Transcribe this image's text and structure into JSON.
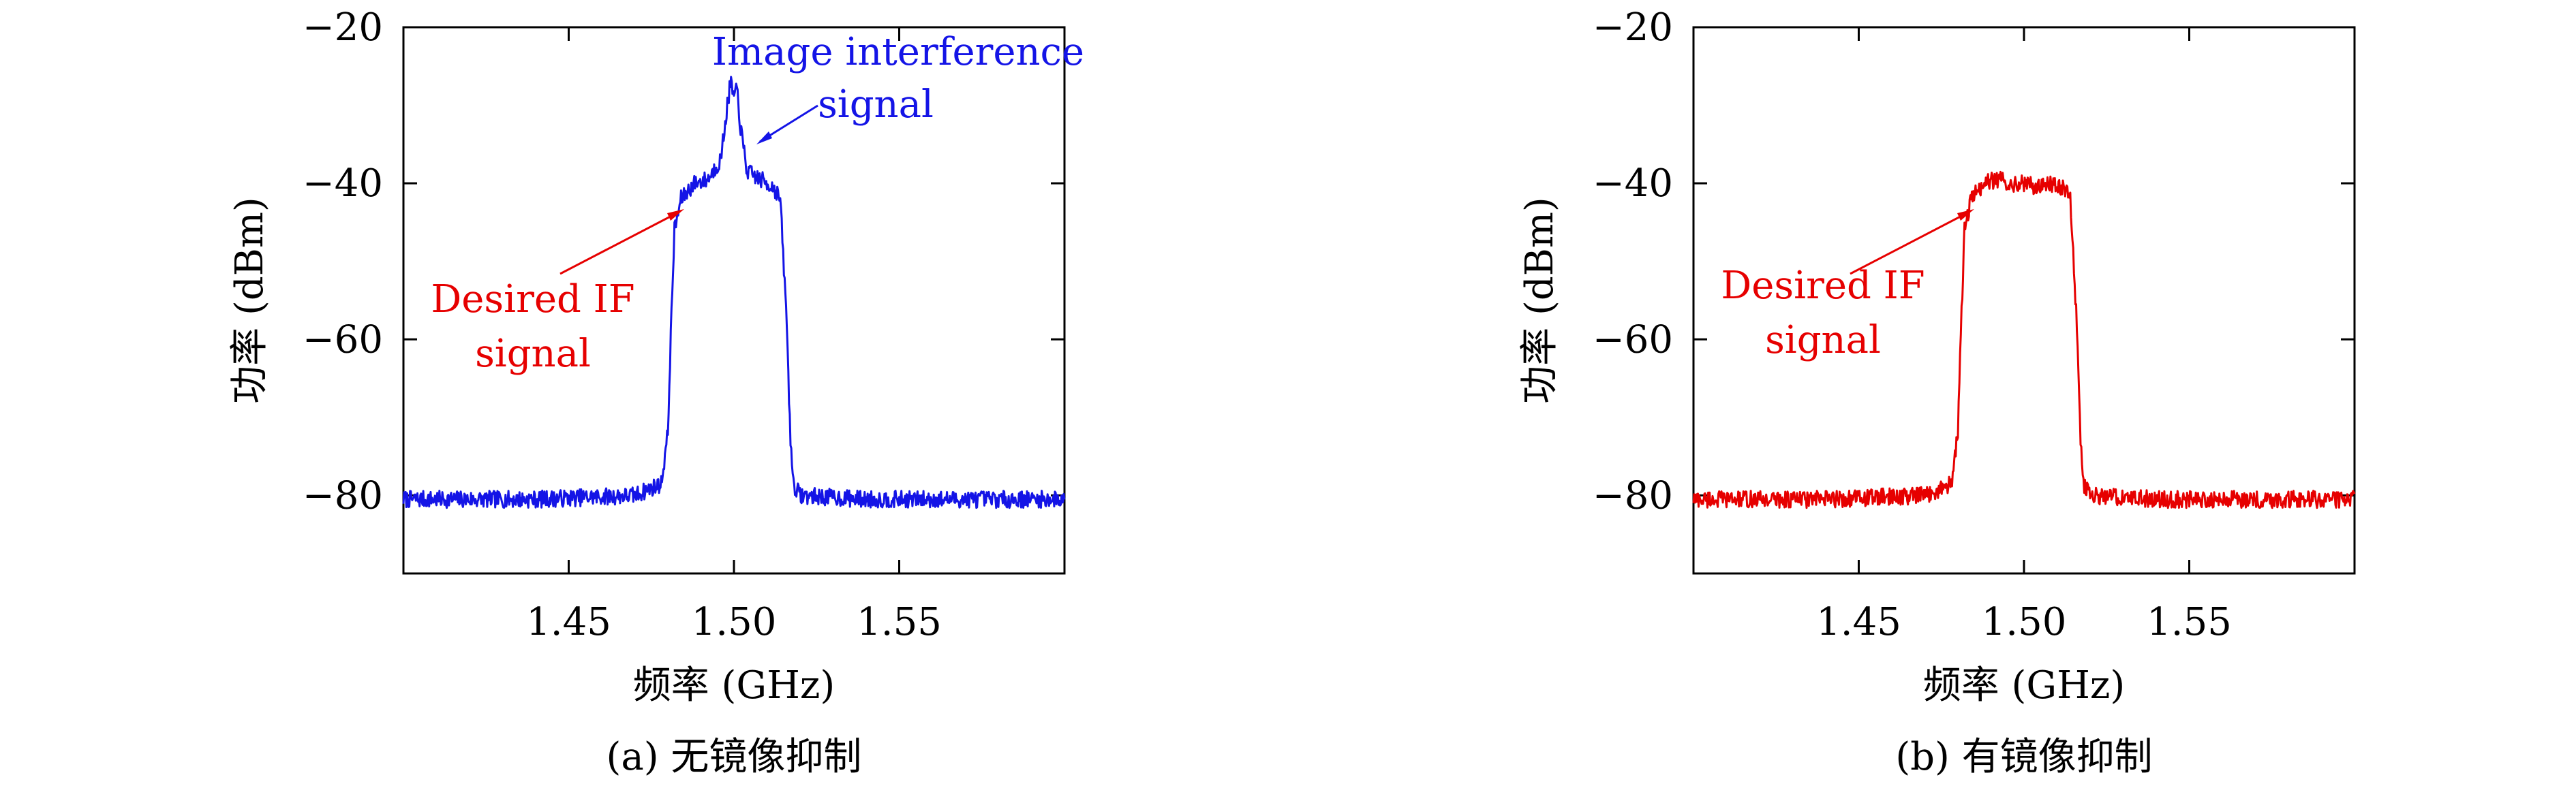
{
  "chart_data": [
    {
      "type": "line",
      "caption": "(a) 无镜像抑制",
      "xlabel": "频率 (GHz)",
      "ylabel": "功率 (dBm)",
      "xlim": [
        1.4,
        1.6
      ],
      "ylim": [
        -90,
        -20
      ],
      "xticks": [
        1.45,
        1.5,
        1.55
      ],
      "xtick_labels": [
        "1.45",
        "1.50",
        "1.55"
      ],
      "yticks": [
        -20,
        -40,
        -60,
        -80
      ],
      "ytick_labels": [
        "−20",
        "−40",
        "−60",
        "−80"
      ],
      "grid": false,
      "color": "#1414e6",
      "series": [
        {
          "x": [
            1.4,
            1.42,
            1.44,
            1.47,
            1.478,
            1.48,
            1.481,
            1.482,
            1.484,
            1.488,
            1.492,
            1.496,
            1.498,
            1.499,
            1.5,
            1.501,
            1.502,
            1.504,
            1.508,
            1.512,
            1.514,
            1.516,
            1.517,
            1.518,
            1.52,
            1.54,
            1.56,
            1.58,
            1.6
          ],
          "y": [
            -80.5,
            -80.5,
            -80.5,
            -80.0,
            -78.5,
            -72.0,
            -58.0,
            -46.0,
            -42.0,
            -40.0,
            -39.5,
            -37.0,
            -30.0,
            -27.0,
            -29.0,
            -28.0,
            -33.0,
            -38.5,
            -39.5,
            -40.5,
            -42.0,
            -58.0,
            -72.0,
            -78.5,
            -80.0,
            -80.5,
            -80.5,
            -80.5,
            -80.5
          ]
        }
      ],
      "annotations": [
        {
          "text": [
            "Image interference",
            "signal"
          ],
          "color": "#1414e6",
          "x": 1.5,
          "y": -36
        },
        {
          "text": [
            "Desired IF",
            "signal"
          ],
          "color": "#e60000",
          "x": 1.483,
          "y": -43
        }
      ]
    },
    {
      "type": "line",
      "caption": "(b) 有镜像抑制",
      "xlabel": "频率 (GHz)",
      "ylabel": "功率 (dBm)",
      "xlim": [
        1.4,
        1.6
      ],
      "ylim": [
        -90,
        -20
      ],
      "xticks": [
        1.45,
        1.5,
        1.55
      ],
      "xtick_labels": [
        "1.45",
        "1.50",
        "1.55"
      ],
      "yticks": [
        -20,
        -40,
        -60,
        -80
      ],
      "ytick_labels": [
        "−20",
        "−40",
        "−60",
        "−80"
      ],
      "grid": false,
      "color": "#e60000",
      "series": [
        {
          "x": [
            1.4,
            1.42,
            1.44,
            1.47,
            1.478,
            1.48,
            1.481,
            1.482,
            1.484,
            1.488,
            1.492,
            1.496,
            1.5,
            1.504,
            1.508,
            1.512,
            1.514,
            1.516,
            1.517,
            1.518,
            1.52,
            1.54,
            1.56,
            1.58,
            1.6
          ],
          "y": [
            -80.5,
            -80.5,
            -80.5,
            -80.0,
            -78.5,
            -72.0,
            -58.0,
            -46.0,
            -42.0,
            -40.0,
            -39.5,
            -40.0,
            -40.0,
            -40.5,
            -40.0,
            -40.5,
            -42.0,
            -58.0,
            -72.0,
            -78.5,
            -80.0,
            -80.5,
            -80.5,
            -80.5,
            -80.5
          ]
        }
      ],
      "annotations": [
        {
          "text": [
            "Desired IF",
            "signal"
          ],
          "color": "#e60000",
          "x": 1.483,
          "y": -43
        }
      ]
    }
  ]
}
